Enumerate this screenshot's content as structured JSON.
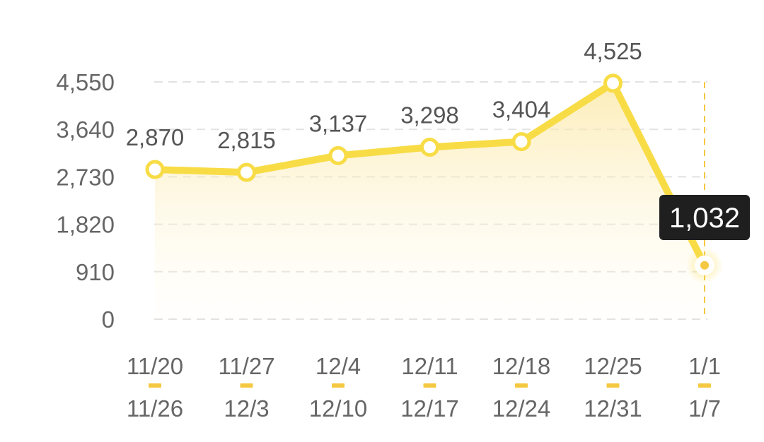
{
  "chart_data": {
    "type": "line",
    "y_ticks": [
      "0",
      "910",
      "1,820",
      "2,730",
      "3,640",
      "4,550"
    ],
    "ylim": [
      0,
      4550
    ],
    "grid": true,
    "categories": [
      {
        "start": "11/20",
        "end": "11/26"
      },
      {
        "start": "11/27",
        "end": "12/3"
      },
      {
        "start": "12/4",
        "end": "12/10"
      },
      {
        "start": "12/11",
        "end": "12/17"
      },
      {
        "start": "12/18",
        "end": "12/24"
      },
      {
        "start": "12/25",
        "end": "12/31"
      },
      {
        "start": "1/1",
        "end": "1/7"
      }
    ],
    "values": [
      2870,
      2815,
      3137,
      3298,
      3404,
      4525,
      1032
    ],
    "value_labels": [
      "2,870",
      "2,815",
      "3,137",
      "3,298",
      "3,404",
      "4,525",
      "1,032"
    ],
    "selected_index": 6,
    "tooltip": "1,032",
    "colors": {
      "line": "#f8dc46",
      "marker_fill": "#ffffff",
      "area_top": "#fbe7a1",
      "grid": "#e2e2e2",
      "tooltip_bg": "#1f1f1f",
      "accent": "#f5c842"
    }
  }
}
